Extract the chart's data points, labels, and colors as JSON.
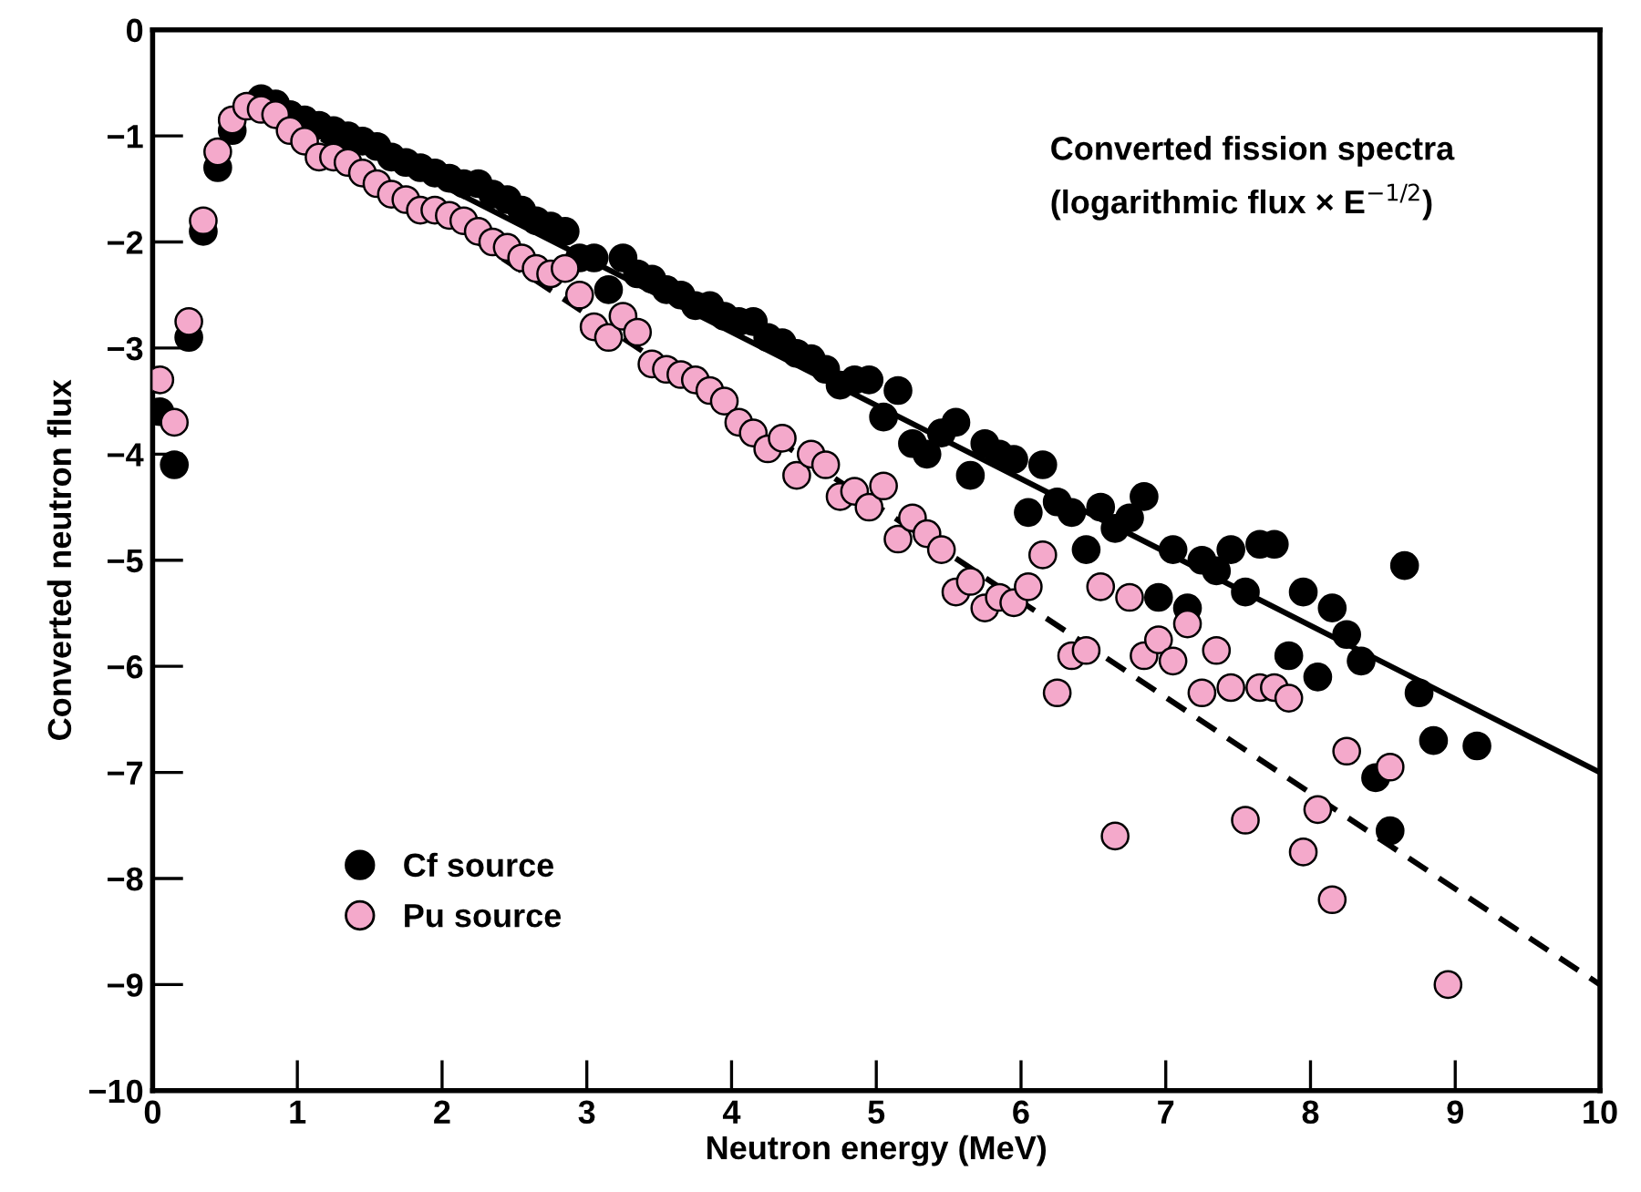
{
  "chart_data": {
    "type": "scatter",
    "xlabel": "Neutron energy (MeV)",
    "ylabel": "Converted neutron flux",
    "annotations": [
      "Converted fission spectra",
      "(logarithmic flux × E$^{−1/2}$)"
    ],
    "xlim": [
      0,
      10
    ],
    "ylim": [
      -10,
      0
    ],
    "xticks": [
      0,
      1,
      2,
      3,
      4,
      5,
      6,
      7,
      8,
      9,
      10
    ],
    "yticks": [
      0,
      {
        "value": -1,
        "label": "−1"
      },
      {
        "value": -2,
        "label": "−2"
      },
      {
        "value": -3,
        "label": "−3"
      },
      {
        "value": -4,
        "label": "−4"
      },
      {
        "value": -5,
        "label": "−5"
      },
      {
        "value": -6,
        "label": "−6"
      },
      {
        "value": -7,
        "label": "−7"
      },
      {
        "value": -8,
        "label": "−8"
      },
      {
        "value": -9,
        "label": "−9"
      },
      {
        "value": -10,
        "label": "−10"
      }
    ],
    "grid": false,
    "legend": "bottom left",
    "marker": "circle",
    "series": [
      {
        "name": "Cf source",
        "color": "#000000",
        "x": [
          0.05,
          0.15,
          0.25,
          0.35,
          0.45,
          0.55,
          0.75,
          0.85,
          0.95,
          1.05,
          1.15,
          1.25,
          1.35,
          1.45,
          1.55,
          1.65,
          1.75,
          1.85,
          1.95,
          2.05,
          2.15,
          2.25,
          2.35,
          2.45,
          2.55,
          2.65,
          2.75,
          2.85,
          2.95,
          3.05,
          3.15,
          3.25,
          3.35,
          3.45,
          3.55,
          3.65,
          3.75,
          3.85,
          3.95,
          4.05,
          4.15,
          4.25,
          4.35,
          4.45,
          4.55,
          4.65,
          4.75,
          4.85,
          4.95,
          5.05,
          5.15,
          5.25,
          5.35,
          5.45,
          5.55,
          5.65,
          5.75,
          5.85,
          5.95,
          6.05,
          6.15,
          6.25,
          6.35,
          6.45,
          6.55,
          6.65,
          6.75,
          6.85,
          6.95,
          7.05,
          7.15,
          7.25,
          7.35,
          7.45,
          7.55,
          7.65,
          7.75,
          7.85,
          7.95,
          8.05,
          8.15,
          8.25,
          8.35,
          8.45,
          8.55,
          8.65,
          8.75,
          8.85,
          9.15
        ],
        "values": [
          -3.6,
          -4.1,
          -2.9,
          -1.9,
          -1.3,
          -0.95,
          -0.65,
          -0.7,
          -0.8,
          -0.85,
          -0.9,
          -0.95,
          -1.0,
          -1.05,
          -1.1,
          -1.2,
          -1.25,
          -1.3,
          -1.35,
          -1.4,
          -1.45,
          -1.45,
          -1.55,
          -1.6,
          -1.7,
          -1.8,
          -1.85,
          -1.9,
          -2.15,
          -2.15,
          -2.45,
          -2.15,
          -2.3,
          -2.35,
          -2.45,
          -2.5,
          -2.6,
          -2.6,
          -2.7,
          -2.75,
          -2.75,
          -2.9,
          -2.95,
          -3.05,
          -3.1,
          -3.2,
          -3.35,
          -3.3,
          -3.3,
          -3.65,
          -3.4,
          -3.9,
          -4.0,
          -3.8,
          -3.7,
          -4.2,
          -3.9,
          -4.0,
          -4.05,
          -4.55,
          -4.1,
          -4.45,
          -4.55,
          -4.9,
          -4.5,
          -4.7,
          -4.6,
          -4.4,
          -5.35,
          -4.9,
          -5.45,
          -5.0,
          -5.1,
          -4.9,
          -5.3,
          -4.85,
          -4.85,
          -5.9,
          -5.3,
          -6.1,
          -5.45,
          -5.7,
          -5.95,
          -7.05,
          -7.55,
          -5.05,
          -6.25,
          -6.7,
          -6.75
        ]
      },
      {
        "name": "Pu source",
        "color": "#f4a9cb",
        "x": [
          0.05,
          0.15,
          0.25,
          0.35,
          0.45,
          0.55,
          0.65,
          0.75,
          0.85,
          0.95,
          1.05,
          1.15,
          1.25,
          1.35,
          1.45,
          1.55,
          1.65,
          1.75,
          1.85,
          1.95,
          2.05,
          2.15,
          2.25,
          2.35,
          2.45,
          2.55,
          2.65,
          2.75,
          2.85,
          2.95,
          3.05,
          3.15,
          3.25,
          3.35,
          3.45,
          3.55,
          3.65,
          3.75,
          3.85,
          3.95,
          4.05,
          4.15,
          4.25,
          4.35,
          4.45,
          4.55,
          4.65,
          4.75,
          4.85,
          4.95,
          5.05,
          5.15,
          5.25,
          5.35,
          5.45,
          5.55,
          5.65,
          5.75,
          5.85,
          5.95,
          6.05,
          6.15,
          6.25,
          6.35,
          6.45,
          6.55,
          6.65,
          6.75,
          6.85,
          6.95,
          7.05,
          7.15,
          7.25,
          7.35,
          7.45,
          7.55,
          7.65,
          7.75,
          7.85,
          7.95,
          8.05,
          8.15,
          8.25,
          8.55,
          8.95
        ],
        "values": [
          -3.3,
          -3.7,
          -2.75,
          -1.8,
          -1.15,
          -0.85,
          -0.72,
          -0.75,
          -0.8,
          -0.95,
          -1.05,
          -1.2,
          -1.2,
          -1.25,
          -1.35,
          -1.45,
          -1.55,
          -1.6,
          -1.7,
          -1.7,
          -1.75,
          -1.8,
          -1.9,
          -2.0,
          -2.05,
          -2.15,
          -2.25,
          -2.3,
          -2.25,
          -2.5,
          -2.8,
          -2.9,
          -2.7,
          -2.85,
          -3.15,
          -3.2,
          -3.25,
          -3.3,
          -3.4,
          -3.5,
          -3.7,
          -3.8,
          -3.95,
          -3.85,
          -4.2,
          -4.0,
          -4.1,
          -4.4,
          -4.35,
          -4.5,
          -4.3,
          -4.8,
          -4.6,
          -4.75,
          -4.9,
          -5.3,
          -5.2,
          -5.45,
          -5.35,
          -5.4,
          -5.25,
          -4.95,
          -6.25,
          -5.9,
          -5.85,
          -5.25,
          -7.6,
          -5.35,
          -5.9,
          -5.75,
          -5.95,
          -5.6,
          -6.25,
          -5.85,
          -6.2,
          -7.45,
          -6.2,
          -6.2,
          -6.3,
          -7.75,
          -7.35,
          -8.2,
          -6.8,
          -6.95,
          -9.0
        ]
      },
      {
        "color": "#000000",
        "type": "line",
        "line_style": "solid",
        "marker": "none",
        "x": [
          0.75,
          10
        ],
        "values": [
          -0.6,
          -7.0
        ]
      },
      {
        "color": "#000000",
        "type": "line",
        "line_style": "dashed",
        "marker": "none",
        "x": [
          0.75,
          10
        ],
        "values": [
          -0.65,
          -9.0
        ]
      }
    ]
  }
}
